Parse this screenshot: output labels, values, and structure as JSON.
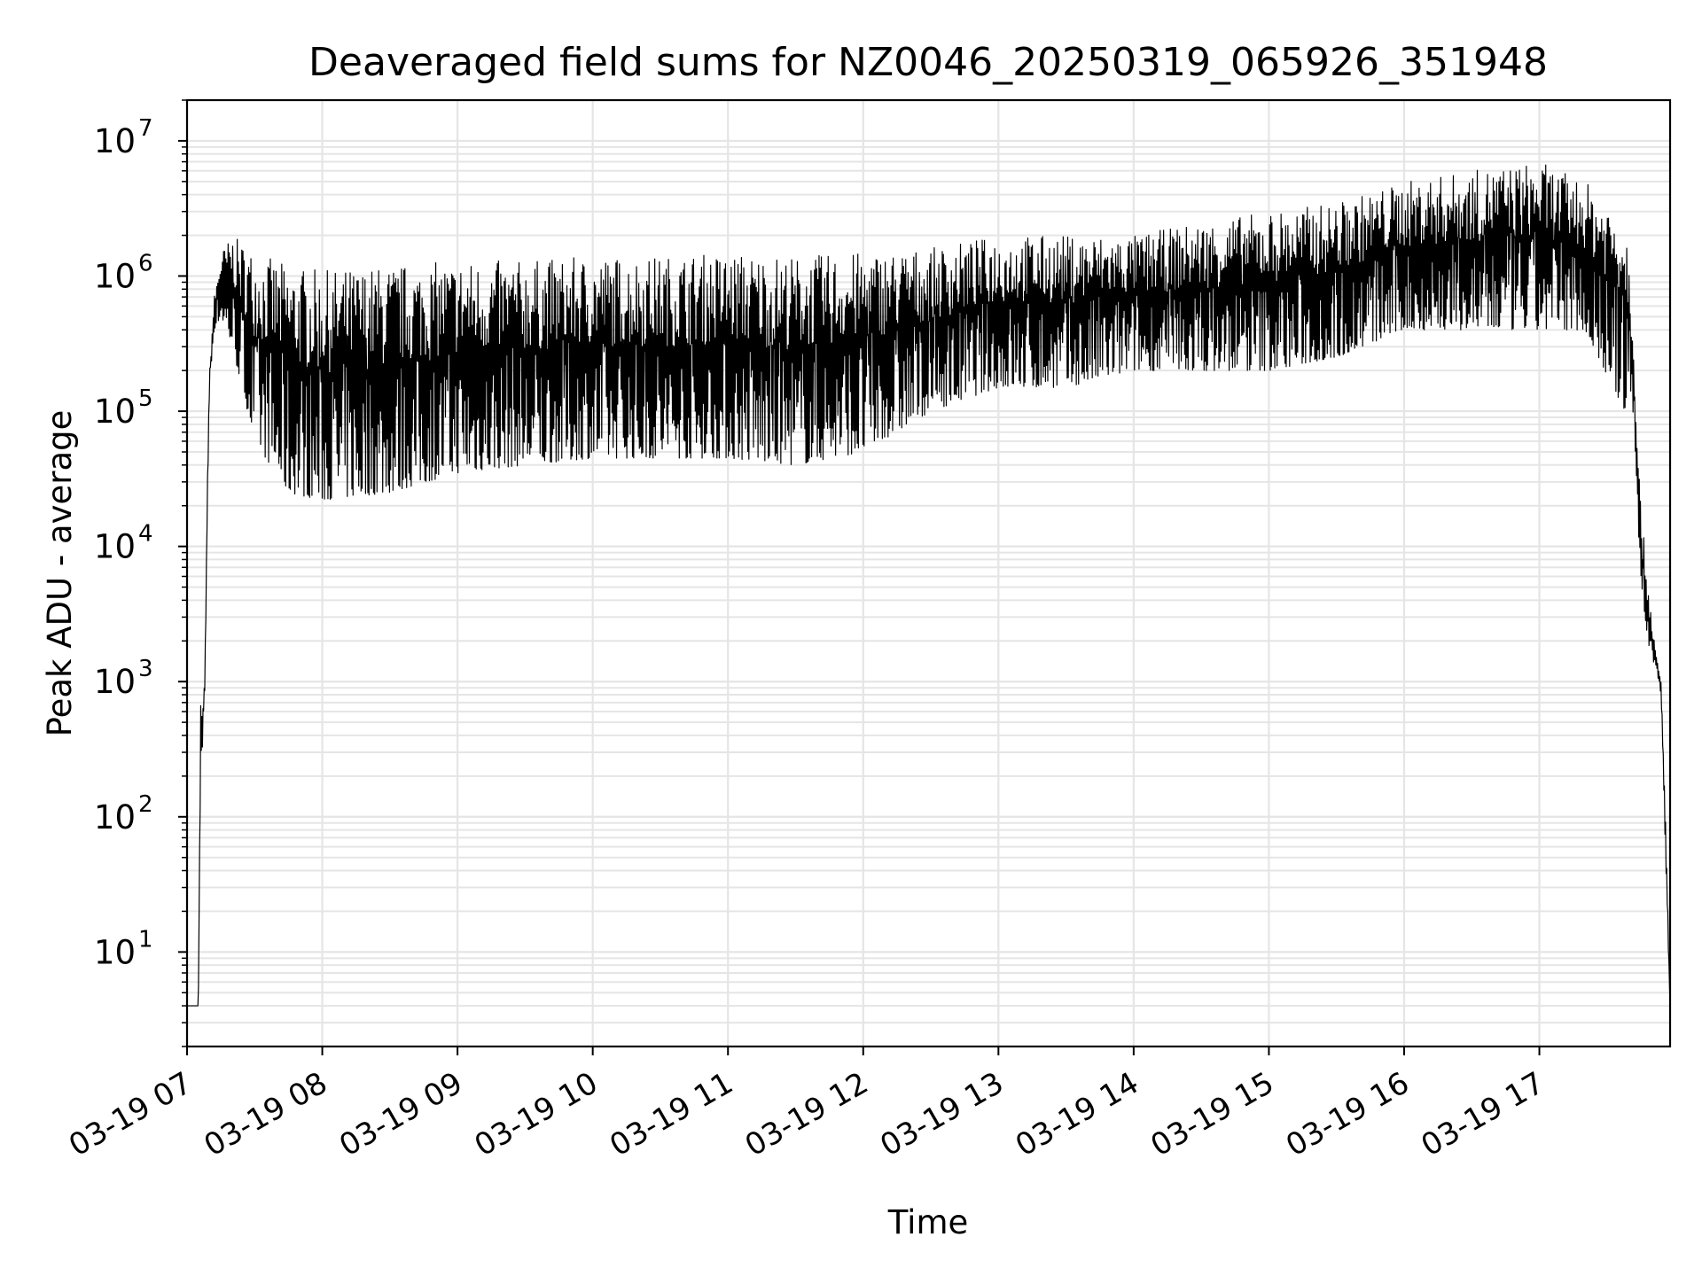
{
  "chart_data": {
    "type": "line",
    "title": "Deaveraged field sums for NZ0046_20250319_065926_351948",
    "xlabel": "Time",
    "ylabel": "Peak ADU - average",
    "yscale": "log",
    "grid": true,
    "xlim": [
      "2025-03-19 07:00",
      "2025-03-19 17:58"
    ],
    "ylim": [
      2,
      20000000
    ],
    "x_ticks": [
      "03-19 07",
      "03-19 08",
      "03-19 09",
      "03-19 10",
      "03-19 11",
      "03-19 12",
      "03-19 13",
      "03-19 14",
      "03-19 15",
      "03-19 16",
      "03-19 17"
    ],
    "y_ticks": [
      {
        "base": "10",
        "exp": "1",
        "value": 10
      },
      {
        "base": "10",
        "exp": "2",
        "value": 100
      },
      {
        "base": "10",
        "exp": "3",
        "value": 1000
      },
      {
        "base": "10",
        "exp": "4",
        "value": 10000
      },
      {
        "base": "10",
        "exp": "5",
        "value": 100000
      },
      {
        "base": "10",
        "exp": "6",
        "value": 1000000
      },
      {
        "base": "10",
        "exp": "7",
        "value": 10000000
      }
    ],
    "line_color": "#000000",
    "grid_color": "#e5e5e5",
    "series": [
      {
        "x": [
          "2025-03-19 07:00",
          "2025-03-19 07:03",
          "2025-03-19 07:04",
          "2025-03-19 07:05",
          "2025-03-19 07:06",
          "2025-03-19 07:07",
          "2025-03-19 07:08",
          "2025-03-19 07:09",
          "2025-03-19 07:10",
          "2025-03-19 07:12",
          "2025-03-19 07:15",
          "2025-03-19 07:20",
          "2025-03-19 07:30",
          "2025-03-19 07:45",
          "2025-03-19 08:00",
          "2025-03-19 08:30",
          "2025-03-19 09:00",
          "2025-03-19 09:30",
          "2025-03-19 10:00",
          "2025-03-19 10:30",
          "2025-03-19 11:00",
          "2025-03-19 11:30",
          "2025-03-19 12:00",
          "2025-03-19 12:30",
          "2025-03-19 13:00",
          "2025-03-19 13:30",
          "2025-03-19 14:00",
          "2025-03-19 14:30",
          "2025-03-19 15:00",
          "2025-03-19 15:30",
          "2025-03-19 16:00",
          "2025-03-19 16:30",
          "2025-03-19 17:00",
          "2025-03-19 17:20",
          "2025-03-19 17:38",
          "2025-03-19 17:40",
          "2025-03-19 17:42",
          "2025-03-19 17:45",
          "2025-03-19 17:48",
          "2025-03-19 17:50",
          "2025-03-19 17:52",
          "2025-03-19 17:54",
          "2025-03-19 17:56",
          "2025-03-19 17:58"
        ],
        "upper": [
          4,
          4,
          4,
          4,
          700,
          600,
          1500,
          30000,
          200000,
          700000,
          1500000,
          2000000,
          1500000,
          1200000,
          1100000,
          1200000,
          1300000,
          1300000,
          1400000,
          1400000,
          1500000,
          1400000,
          1500000,
          1600000,
          2000000,
          2000000,
          2000000,
          2500000,
          3000000,
          3500000,
          5000000,
          6000000,
          7000000,
          5000000,
          3000000,
          1500000,
          300000,
          20000,
          6000,
          3000,
          1500,
          1000,
          100,
          4
        ],
        "lower": [
          4,
          4,
          4,
          4,
          200,
          300,
          1000,
          20000,
          150000,
          400000,
          500000,
          300000,
          60000,
          25000,
          22000,
          25000,
          35000,
          40000,
          45000,
          45000,
          45000,
          40000,
          50000,
          100000,
          150000,
          150000,
          200000,
          200000,
          200000,
          250000,
          400000,
          400000,
          400000,
          400000,
          100000,
          150000,
          80000,
          5000,
          2000,
          1500,
          1200,
          800,
          50,
          4
        ]
      }
    ]
  }
}
